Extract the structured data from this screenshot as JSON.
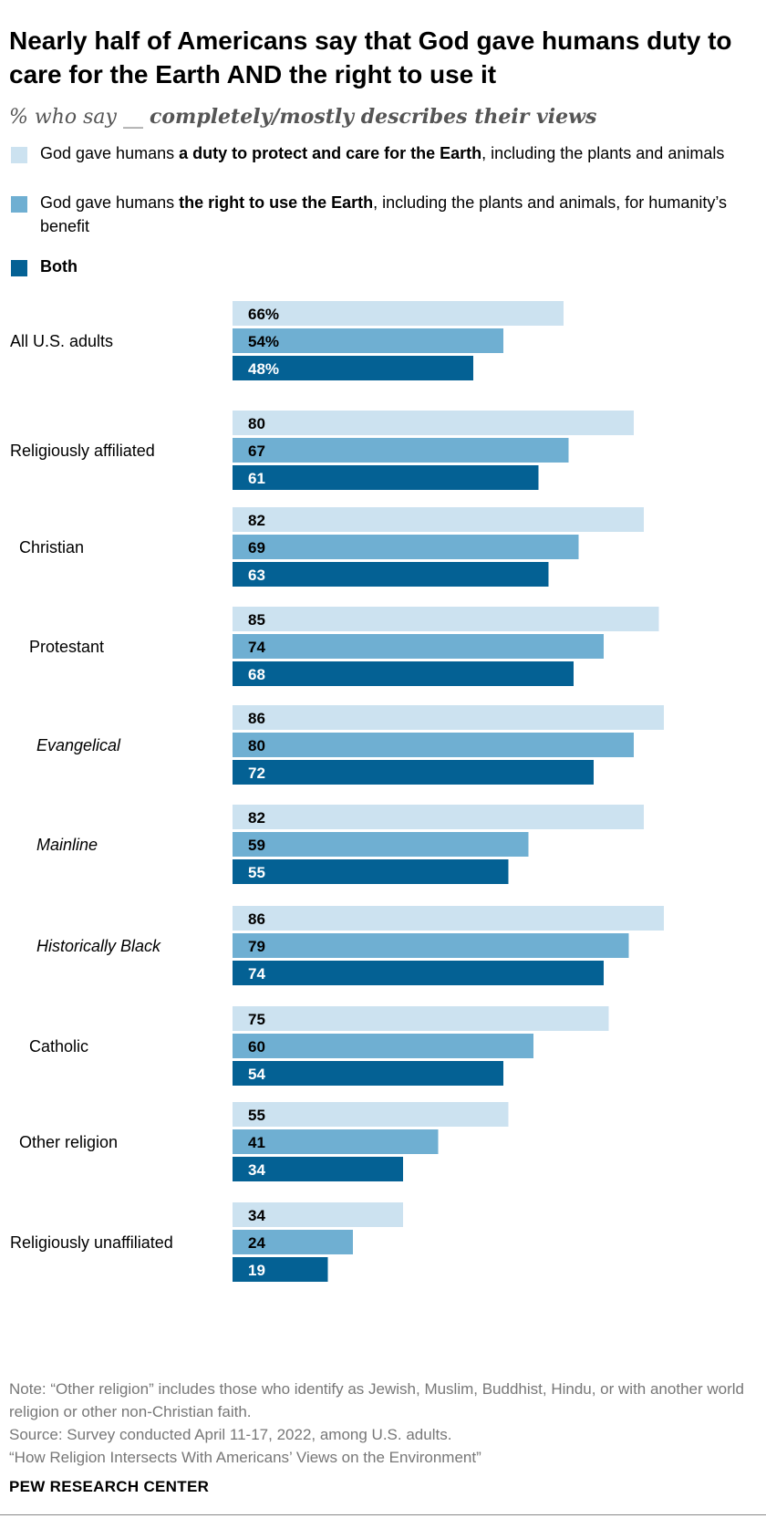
{
  "header": {
    "title": "Nearly half of Americans say that God gave humans duty to care for the Earth AND the right to use it",
    "subtitle_pre": "% who say __ ",
    "subtitle_bold": "completely/mostly describes their views"
  },
  "legend": [
    {
      "color": "#cce2f0",
      "pre": "God gave humans ",
      "bold": "a duty to protect and care for the Earth",
      "post": ", including the plants and animals"
    },
    {
      "color": "#6fafd2",
      "pre": "God gave humans ",
      "bold": "the right to use the Earth",
      "post": ", including the plants and animals, for humanity’s benefit"
    },
    {
      "color": "#046194",
      "pre": "",
      "bold": "Both",
      "post": ""
    }
  ],
  "chart_data": {
    "type": "bar",
    "orientation": "horizontal",
    "value_suffix_first_group": "%",
    "categories": [
      "All U.S. adults",
      "Religiously affiliated",
      "Christian",
      "Protestant",
      "Evangelical",
      "Mainline",
      "Historically Black",
      "Catholic",
      "Other religion",
      "Religiously unaffiliated"
    ],
    "category_indent": [
      0,
      0,
      1,
      2,
      3,
      3,
      3,
      2,
      1,
      0
    ],
    "category_italic": [
      false,
      false,
      false,
      false,
      true,
      true,
      true,
      false,
      false,
      false
    ],
    "series": [
      {
        "name": "God gave humans a duty to protect and care for the Earth, including the plants and animals",
        "color": "#cce2f0",
        "label_color": "#000000",
        "values": [
          66,
          80,
          82,
          85,
          86,
          82,
          86,
          75,
          55,
          34
        ]
      },
      {
        "name": "God gave humans the right to use the Earth, including the plants and animals, for humanity’s benefit",
        "color": "#6fafd2",
        "label_color": "#000000",
        "values": [
          54,
          67,
          69,
          74,
          80,
          59,
          79,
          60,
          41,
          24
        ]
      },
      {
        "name": "Both",
        "color": "#046194",
        "label_color": "#ffffff",
        "values": [
          48,
          61,
          63,
          68,
          72,
          55,
          74,
          54,
          34,
          19
        ]
      }
    ],
    "xlim": [
      0,
      100
    ]
  },
  "footer": {
    "note": "Note: “Other religion” includes those who identify as Jewish, Muslim, Buddhist, Hindu, or with another world religion or other non-Christian faith.",
    "source": "Source: Survey conducted April 11-17, 2022, among U.S. adults.",
    "report": "“How Religion Intersects With Americans’ Views on the Environment”",
    "brand": "PEW RESEARCH CENTER"
  }
}
